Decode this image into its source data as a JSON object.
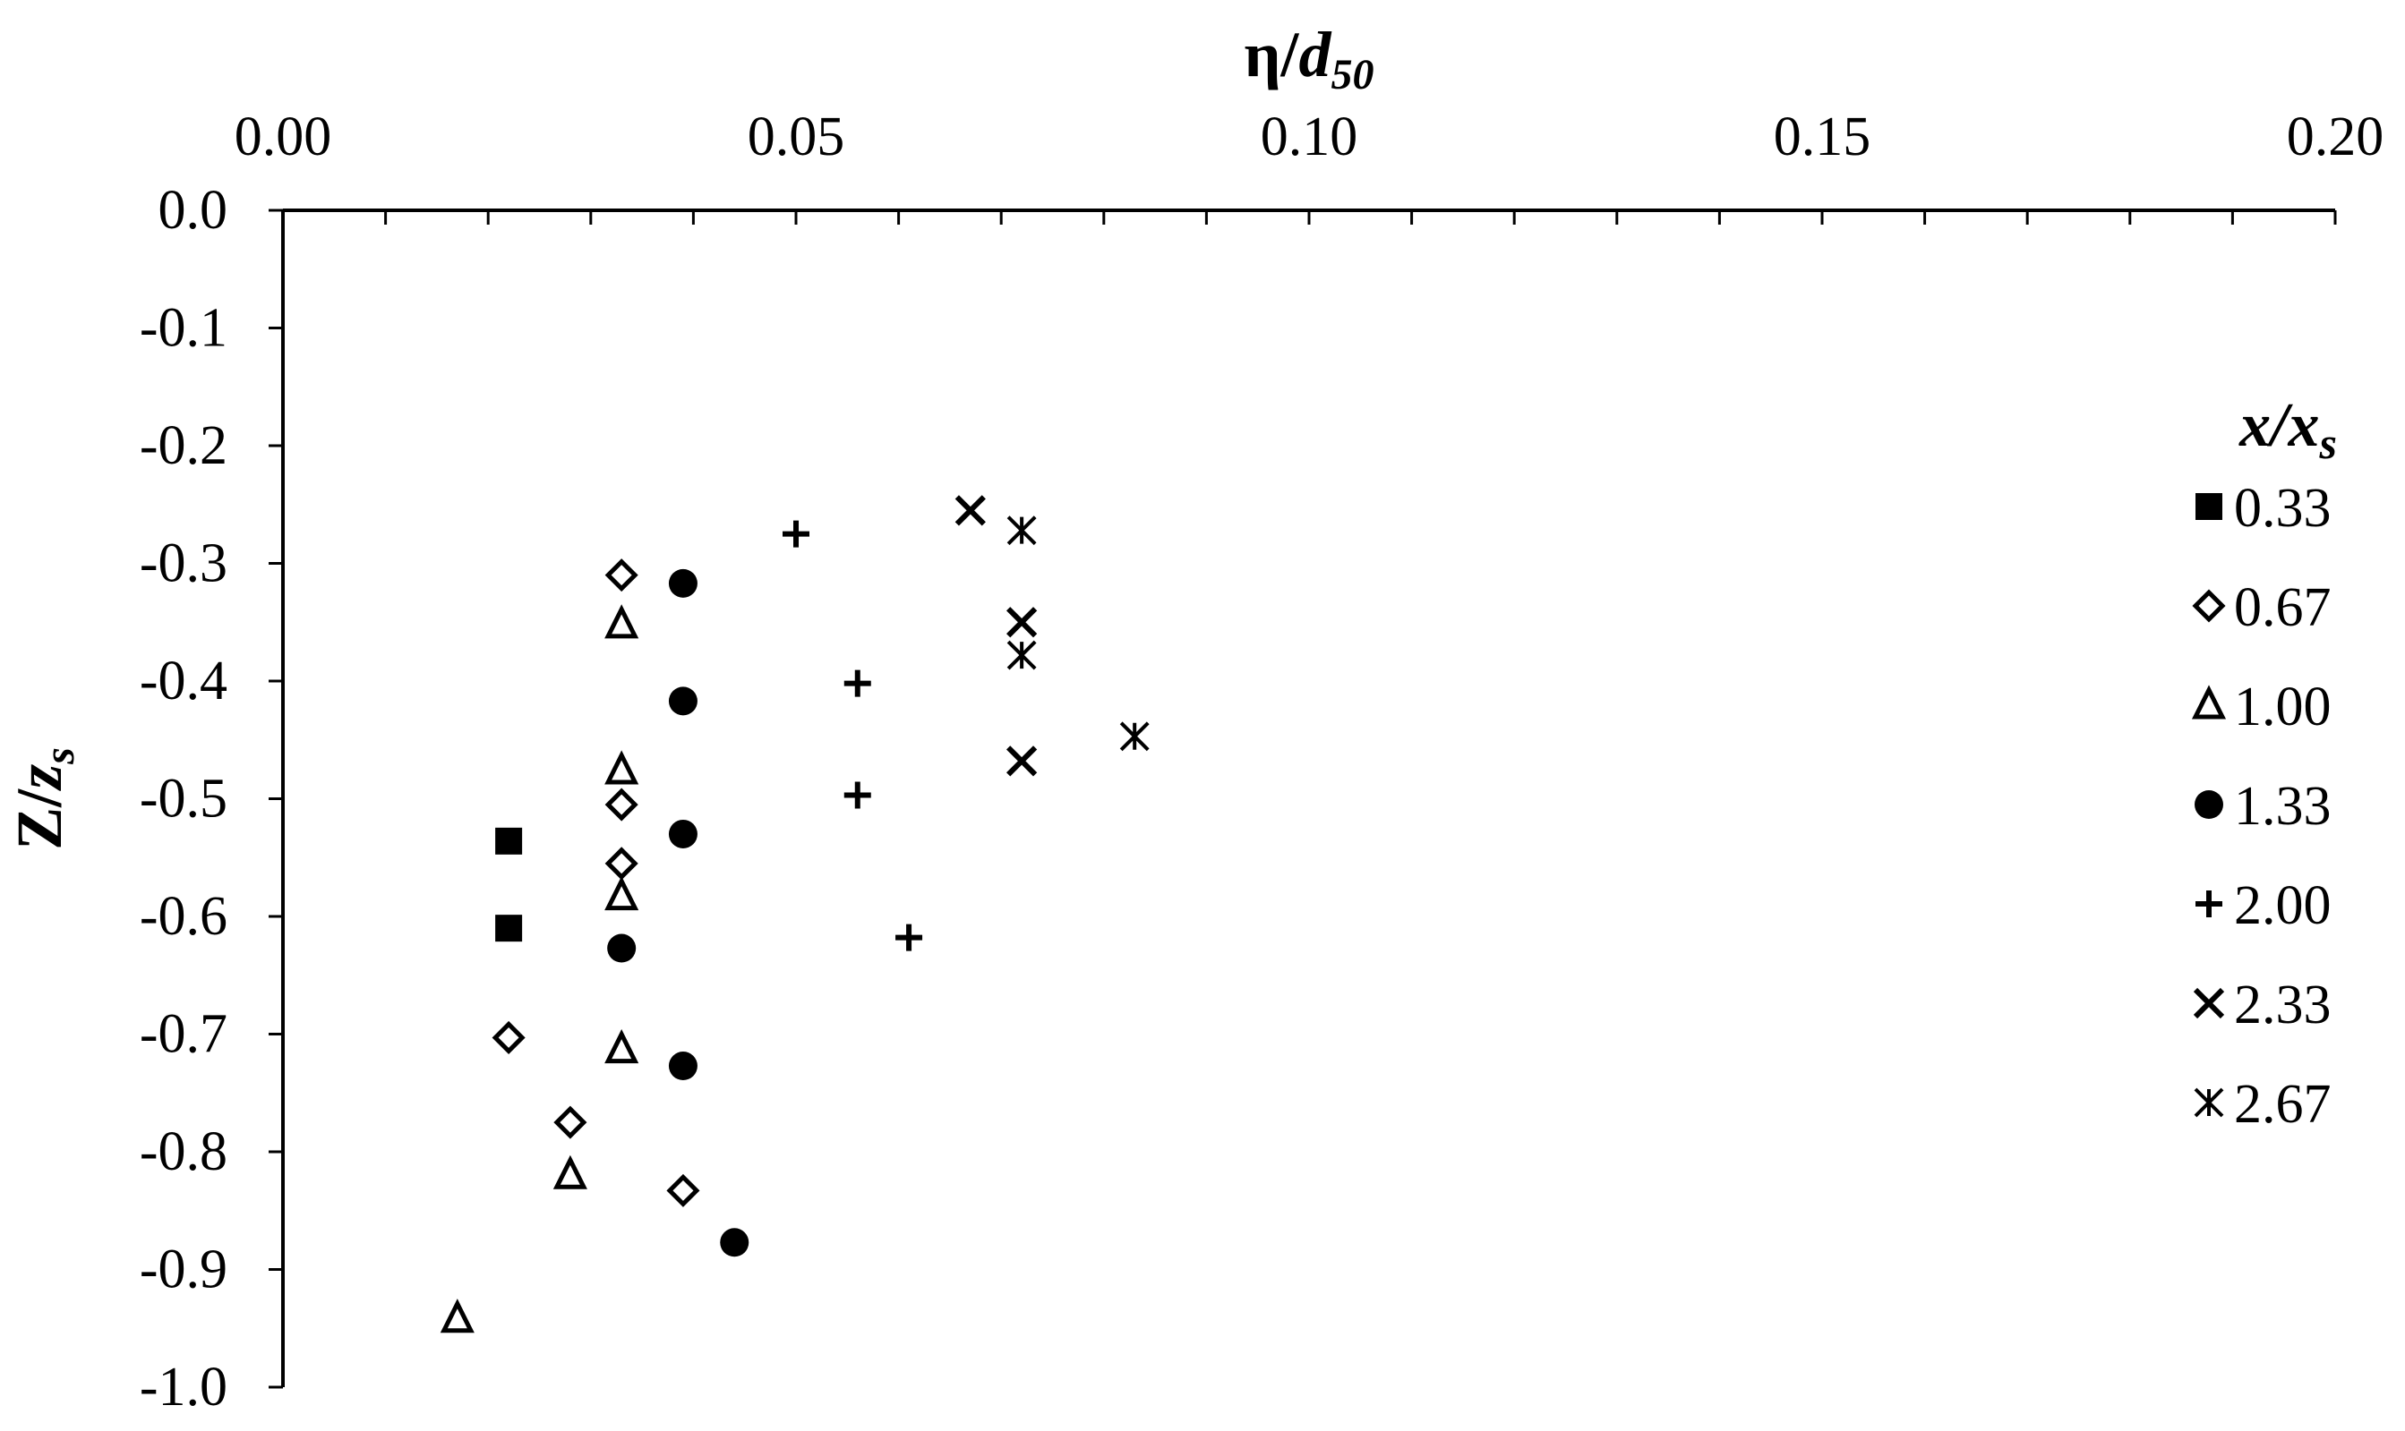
{
  "chart_data": {
    "type": "scatter",
    "xlabel": {
      "main": "η/",
      "italic": "d",
      "sub": "50"
    },
    "ylabel": {
      "main": "Z/",
      "italic": "z",
      "sub": "s"
    },
    "xlim": [
      0.0,
      0.2
    ],
    "ylim": [
      -1.0,
      0.0
    ],
    "x_axis_position": "top",
    "x_ticks": [
      "0.00",
      "0.05",
      "0.10",
      "0.15",
      "0.20"
    ],
    "x_tick_values": [
      0.0,
      0.05,
      0.1,
      0.15,
      0.2
    ],
    "y_ticks": [
      "0.0",
      "-0.1",
      "-0.2",
      "-0.3",
      "-0.4",
      "-0.5",
      "-0.6",
      "-0.7",
      "-0.8",
      "-0.9",
      "-1.0"
    ],
    "y_tick_values": [
      0.0,
      -0.1,
      -0.2,
      -0.3,
      -0.4,
      -0.5,
      -0.6,
      -0.7,
      -0.8,
      -0.9,
      -1.0
    ],
    "grid": false,
    "legend": {
      "title_main": "x/x",
      "title_sub": "s",
      "position": "right"
    },
    "series": [
      {
        "name": "0.33",
        "marker": "square-filled",
        "points": [
          [
            0.022,
            -0.536
          ],
          [
            0.022,
            -0.61
          ]
        ]
      },
      {
        "name": "0.67",
        "marker": "diamond-open",
        "points": [
          [
            0.033,
            -0.31
          ],
          [
            0.033,
            -0.505
          ],
          [
            0.033,
            -0.555
          ],
          [
            0.022,
            -0.703
          ],
          [
            0.028,
            -0.775
          ],
          [
            0.039,
            -0.833
          ]
        ]
      },
      {
        "name": "1.00",
        "marker": "triangle-open",
        "points": [
          [
            0.033,
            -0.352
          ],
          [
            0.033,
            -0.476
          ],
          [
            0.033,
            -0.583
          ],
          [
            0.033,
            -0.713
          ],
          [
            0.028,
            -0.82
          ],
          [
            0.017,
            -0.942
          ]
        ]
      },
      {
        "name": "1.33",
        "marker": "circle-filled",
        "points": [
          [
            0.039,
            -0.317
          ],
          [
            0.039,
            -0.417
          ],
          [
            0.039,
            -0.53
          ],
          [
            0.033,
            -0.627
          ],
          [
            0.039,
            -0.727
          ],
          [
            0.044,
            -0.877
          ]
        ]
      },
      {
        "name": "2.00",
        "marker": "plus",
        "points": [
          [
            0.05,
            -0.275
          ],
          [
            0.056,
            -0.402
          ],
          [
            0.056,
            -0.497
          ],
          [
            0.061,
            -0.618
          ]
        ]
      },
      {
        "name": "2.33",
        "marker": "cross",
        "points": [
          [
            0.067,
            -0.255
          ],
          [
            0.072,
            -0.35
          ],
          [
            0.072,
            -0.468
          ]
        ]
      },
      {
        "name": "2.67",
        "marker": "asterisk",
        "points": [
          [
            0.072,
            -0.272
          ],
          [
            0.072,
            -0.378
          ],
          [
            0.083,
            -0.447
          ]
        ]
      }
    ]
  }
}
